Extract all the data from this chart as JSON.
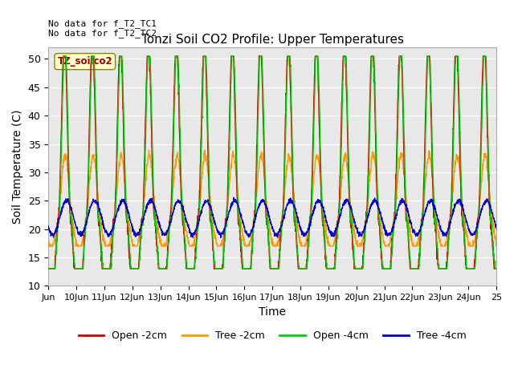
{
  "title": "Tonzi Soil CO2 Profile: Upper Temperatures",
  "xlabel": "Time",
  "ylabel": "Soil Temperature (C)",
  "ylim": [
    10,
    52
  ],
  "yticks": [
    10,
    15,
    20,
    25,
    30,
    35,
    40,
    45,
    50
  ],
  "background_color": "#e8e8e8",
  "figure_color": "#ffffff",
  "annotation_text": "No data for f_T2_TC1\nNo data for f_T2_TC2",
  "legend_label_text": "TZ_soilco2",
  "colors": {
    "Open -2cm": "#cc0000",
    "Tree -2cm": "#ff9900",
    "Open -4cm": "#00cc00",
    "Tree -4cm": "#0000cc"
  },
  "xtick_labels": [
    "Jun",
    "10Jun",
    "11Jun",
    "12Jun",
    "13Jun",
    "14Jun",
    "15Jun",
    "16Jun",
    "17Jun",
    "18Jun",
    "19Jun",
    "20Jun",
    "21Jun",
    "22Jun",
    "23Jun",
    "24Jun",
    "25"
  ],
  "n_days": 16,
  "points_per_day": 144
}
